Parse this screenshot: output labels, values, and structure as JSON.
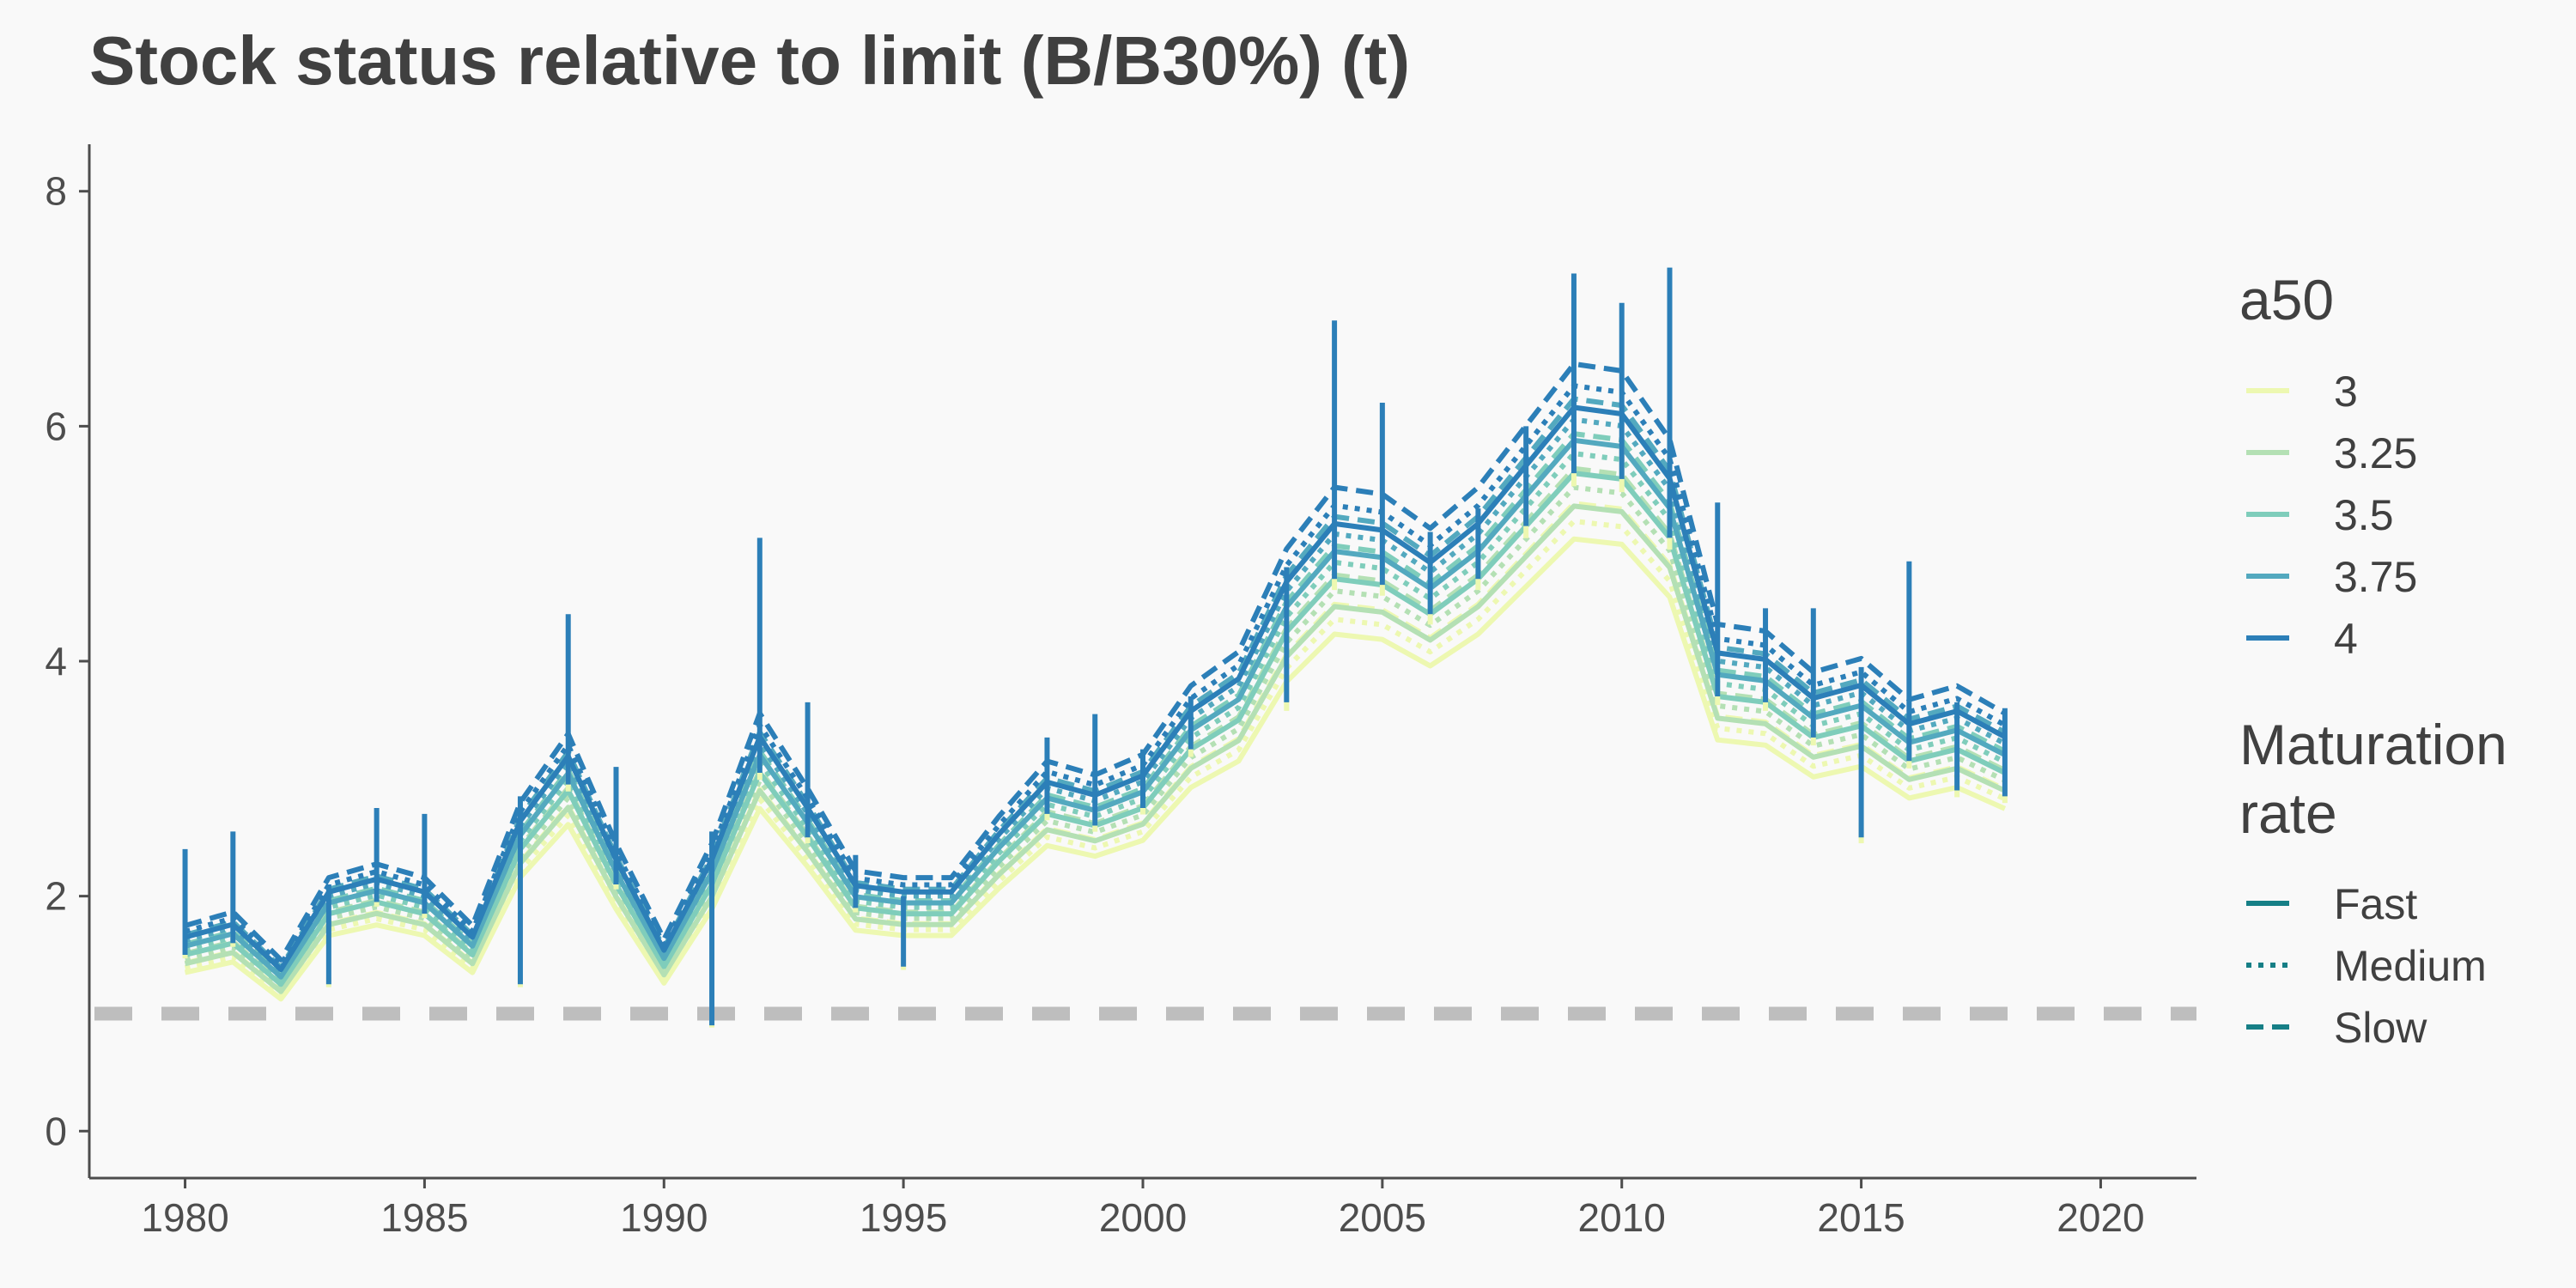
{
  "chart_data": {
    "type": "line",
    "title": "Stock status relative to limit (B/B30%) (t)",
    "xlabel": "",
    "ylabel": "",
    "xlim": [
      1978,
      2022
    ],
    "ylim": [
      -0.4,
      8.4
    ],
    "x_ticks": [
      1980,
      1985,
      1990,
      1995,
      2000,
      2005,
      2010,
      2015,
      2020
    ],
    "y_ticks": [
      0,
      2,
      4,
      6,
      8
    ],
    "grid": false,
    "reference_line": {
      "y": 1.0,
      "style": "dashed",
      "color": "#bebebe"
    },
    "x": [
      1980,
      1981,
      1982,
      1983,
      1984,
      1985,
      1986,
      1987,
      1988,
      1989,
      1990,
      1991,
      1992,
      1993,
      1994,
      1995,
      1996,
      1997,
      1998,
      1999,
      2000,
      2001,
      2002,
      2003,
      2004,
      2005,
      2006,
      2007,
      2008,
      2009,
      2010,
      2011,
      2012,
      2013,
      2014,
      2015,
      2016,
      2017,
      2018
    ],
    "base_values": [
      1.5,
      1.6,
      1.25,
      1.85,
      1.95,
      1.85,
      1.5,
      2.4,
      2.9,
      2.1,
      1.4,
      2.1,
      3.05,
      2.5,
      1.9,
      1.85,
      1.85,
      2.3,
      2.7,
      2.6,
      2.75,
      3.25,
      3.5,
      4.25,
      4.7,
      4.65,
      4.4,
      4.7,
      5.15,
      5.6,
      5.55,
      5.05,
      3.7,
      3.65,
      3.35,
      3.45,
      3.15,
      3.25,
      3.05
    ],
    "spikes": [
      {
        "x": 1980,
        "low": 1.5,
        "high": 2.4
      },
      {
        "x": 1981,
        "low": 1.6,
        "high": 2.55
      },
      {
        "x": 1983,
        "low": 1.25,
        "high": 2.1
      },
      {
        "x": 1984,
        "low": 1.95,
        "high": 2.75
      },
      {
        "x": 1985,
        "low": 1.85,
        "high": 2.7
      },
      {
        "x": 1987,
        "low": 1.25,
        "high": 2.85
      },
      {
        "x": 1988,
        "low": 2.95,
        "high": 4.4
      },
      {
        "x": 1989,
        "low": 2.1,
        "high": 3.1
      },
      {
        "x": 1991,
        "low": 0.9,
        "high": 2.55
      },
      {
        "x": 1992,
        "low": 3.05,
        "high": 5.05
      },
      {
        "x": 1993,
        "low": 2.5,
        "high": 3.65
      },
      {
        "x": 1994,
        "low": 1.9,
        "high": 2.35
      },
      {
        "x": 1995,
        "low": 1.4,
        "high": 2.0
      },
      {
        "x": 1998,
        "low": 2.7,
        "high": 3.35
      },
      {
        "x": 1999,
        "low": 2.6,
        "high": 3.55
      },
      {
        "x": 2000,
        "low": 2.75,
        "high": 3.25
      },
      {
        "x": 2001,
        "low": 3.25,
        "high": 3.7
      },
      {
        "x": 2003,
        "low": 3.65,
        "high": 4.8
      },
      {
        "x": 2004,
        "low": 4.7,
        "high": 6.9
      },
      {
        "x": 2005,
        "low": 4.65,
        "high": 6.2
      },
      {
        "x": 2006,
        "low": 4.4,
        "high": 5.1
      },
      {
        "x": 2007,
        "low": 4.7,
        "high": 5.3
      },
      {
        "x": 2008,
        "low": 5.15,
        "high": 6.0
      },
      {
        "x": 2009,
        "low": 5.6,
        "high": 7.3
      },
      {
        "x": 2010,
        "low": 5.55,
        "high": 7.05
      },
      {
        "x": 2011,
        "low": 5.05,
        "high": 7.35
      },
      {
        "x": 2012,
        "low": 3.7,
        "high": 5.35
      },
      {
        "x": 2013,
        "low": 3.65,
        "high": 4.45
      },
      {
        "x": 2014,
        "low": 3.35,
        "high": 4.45
      },
      {
        "x": 2015,
        "low": 2.5,
        "high": 3.95
      },
      {
        "x": 2016,
        "low": 3.15,
        "high": 4.85
      },
      {
        "x": 2017,
        "low": 2.9,
        "high": 3.65
      },
      {
        "x": 2018,
        "low": 2.85,
        "high": 3.6
      }
    ],
    "legend": {
      "placement": "right",
      "groups": [
        {
          "title_lines": [
            "a50"
          ],
          "items": [
            {
              "label": "3",
              "color": "#edf8b1",
              "offset": 0.9
            },
            {
              "label": "3.25",
              "color": "#b4e0b4",
              "offset": 0.95
            },
            {
              "label": "3.5",
              "color": "#7fcdbb",
              "offset": 1.0
            },
            {
              "label": "3.75",
              "color": "#53a9bf",
              "offset": 1.05
            },
            {
              "label": "4",
              "color": "#2c7fb8",
              "offset": 1.1
            }
          ]
        },
        {
          "title_lines": [
            "Maturation",
            "rate"
          ],
          "items": [
            {
              "label": "Fast",
              "dash": "solid",
              "multiplier": 1.0
            },
            {
              "label": "Medium",
              "dash": "dotted",
              "multiplier": 1.03
            },
            {
              "label": "Slow",
              "dash": "dashed",
              "multiplier": 1.06
            }
          ],
          "key_color": "#167f86"
        }
      ]
    }
  }
}
